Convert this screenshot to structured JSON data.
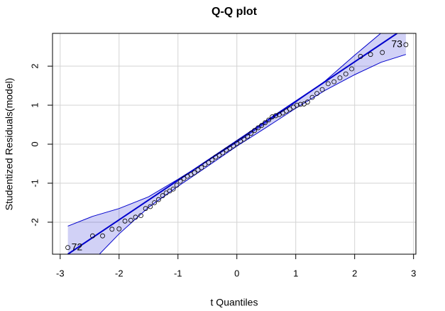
{
  "chart_data": {
    "type": "qq",
    "title": "Q-Q plot",
    "x_label": "t Quantiles",
    "y_label": "Studentized Residuals(model)",
    "xlim": [
      -3.13,
      3.04
    ],
    "ylim": [
      -2.82,
      2.84
    ],
    "xticks": [
      -3,
      -2,
      -1,
      0,
      1,
      2,
      3
    ],
    "yticks": [
      -2,
      -1,
      0,
      1,
      2
    ],
    "grid": true,
    "point_color": "#000000",
    "line_color": "#0000cc",
    "band_color": "#0000cc",
    "x": [
      -2.87,
      -2.45,
      -2.28,
      -2.12,
      -2.0,
      -1.9,
      -1.8,
      -1.72,
      -1.63,
      -1.55,
      -1.47,
      -1.4,
      -1.33,
      -1.26,
      -1.2,
      -1.14,
      -1.08,
      -1.02,
      -0.96,
      -0.9,
      -0.84,
      -0.78,
      -0.72,
      -0.66,
      -0.6,
      -0.54,
      -0.48,
      -0.42,
      -0.36,
      -0.3,
      -0.24,
      -0.18,
      -0.12,
      -0.06,
      0,
      0.06,
      0.12,
      0.18,
      0.24,
      0.3,
      0.36,
      0.42,
      0.48,
      0.54,
      0.6,
      0.66,
      0.72,
      0.78,
      0.84,
      0.9,
      0.96,
      1.02,
      1.08,
      1.14,
      1.2,
      1.28,
      1.36,
      1.45,
      1.55,
      1.65,
      1.75,
      1.85,
      1.95,
      2.1,
      2.27,
      2.47,
      2.87
    ],
    "values": [
      -2.65,
      -2.35,
      -2.35,
      -2.18,
      -2.17,
      -1.97,
      -1.95,
      -1.87,
      -1.83,
      -1.65,
      -1.6,
      -1.5,
      -1.42,
      -1.32,
      -1.25,
      -1.2,
      -1.15,
      -1.05,
      -0.95,
      -0.88,
      -0.82,
      -0.78,
      -0.73,
      -0.66,
      -0.6,
      -0.52,
      -0.47,
      -0.4,
      -0.33,
      -0.28,
      -0.22,
      -0.15,
      -0.1,
      -0.04,
      0.02,
      0.08,
      0.13,
      0.2,
      0.28,
      0.35,
      0.42,
      0.48,
      0.55,
      0.62,
      0.7,
      0.73,
      0.76,
      0.8,
      0.85,
      0.9,
      0.95,
      1.0,
      1.02,
      1.03,
      1.08,
      1.2,
      1.3,
      1.4,
      1.55,
      1.6,
      1.7,
      1.8,
      1.93,
      2.25,
      2.3,
      2.35,
      2.55
    ],
    "point_labels": [
      "72",
      null,
      null,
      null,
      null,
      null,
      null,
      null,
      null,
      null,
      null,
      null,
      null,
      null,
      null,
      null,
      null,
      null,
      null,
      null,
      null,
      null,
      null,
      null,
      null,
      null,
      null,
      null,
      null,
      null,
      null,
      null,
      null,
      null,
      null,
      null,
      null,
      null,
      null,
      null,
      null,
      null,
      null,
      null,
      null,
      null,
      null,
      null,
      null,
      null,
      null,
      null,
      null,
      null,
      null,
      null,
      null,
      null,
      null,
      null,
      null,
      null,
      null,
      null,
      null,
      null,
      "73"
    ],
    "reference_line": {
      "x": [
        -2.87,
        2.72
      ],
      "y": [
        -2.82,
        2.84
      ]
    },
    "band": {
      "x": [
        -2.87,
        -2.45,
        -2,
        -1.5,
        -1,
        -0.5,
        0,
        0.5,
        1,
        1.5,
        2,
        2.45,
        2.87
      ],
      "upper": [
        -2.1,
        -1.85,
        -1.65,
        -1.35,
        -0.9,
        -0.43,
        0.05,
        0.55,
        1.08,
        1.62,
        2.28,
        2.85,
        3.5
      ],
      "lower": [
        -3.6,
        -3.0,
        -2.3,
        -1.62,
        -1.08,
        -0.57,
        -0.05,
        0.43,
        0.92,
        1.38,
        1.78,
        2.1,
        2.3
      ]
    }
  }
}
